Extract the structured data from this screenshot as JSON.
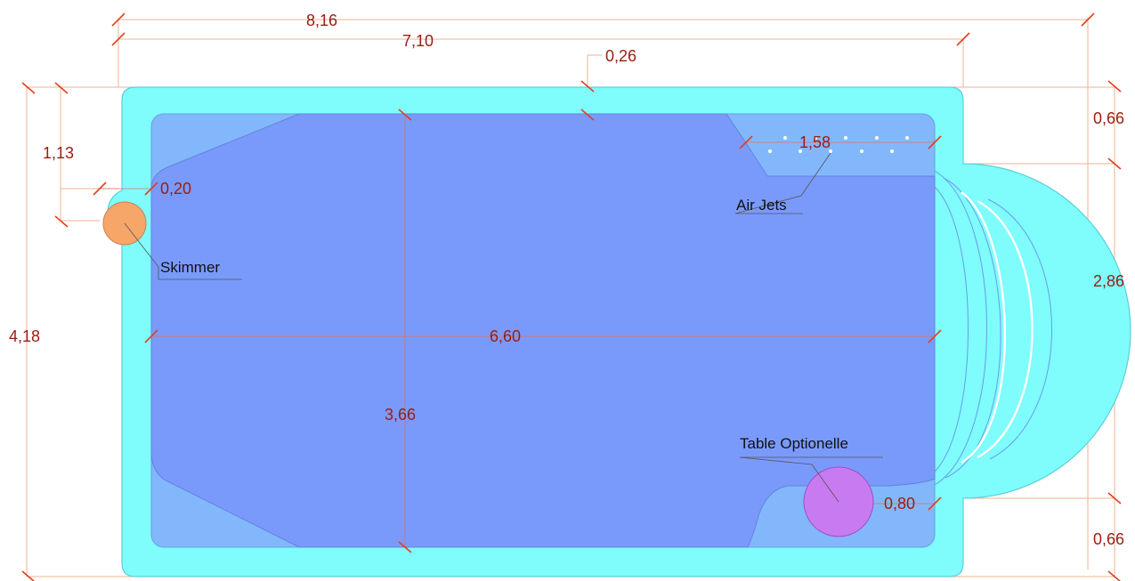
{
  "colors": {
    "coping": "#7ffcfc",
    "deep_area": "#7a9afb",
    "shallow_area": "#82b8fb",
    "skimmer": "#f7a66a",
    "table": "#c87af0",
    "dimension_text": "#9b1c10",
    "dimension_line": "#f0b090"
  },
  "dimensions": {
    "overall_length": "8,16",
    "inner_length": "7,10",
    "coping_width": "0,26",
    "top_margin": "0,66",
    "bench_length": "1,58",
    "skimmer_offset": "1,13",
    "skimmer_gap": "0,20",
    "overall_width": "4,18",
    "basin_length": "6,60",
    "steps_width": "2,86",
    "basin_width": "3,66",
    "table_gap": "0,80",
    "bottom_margin": "0,66"
  },
  "labels": {
    "air_jets": "Air Jets",
    "skimmer": "Skimmer",
    "table": "Table Optionelle"
  },
  "icons": {
    "skimmer": "skimmer-circle",
    "table": "table-circle",
    "air_jets": "jet-dots"
  }
}
